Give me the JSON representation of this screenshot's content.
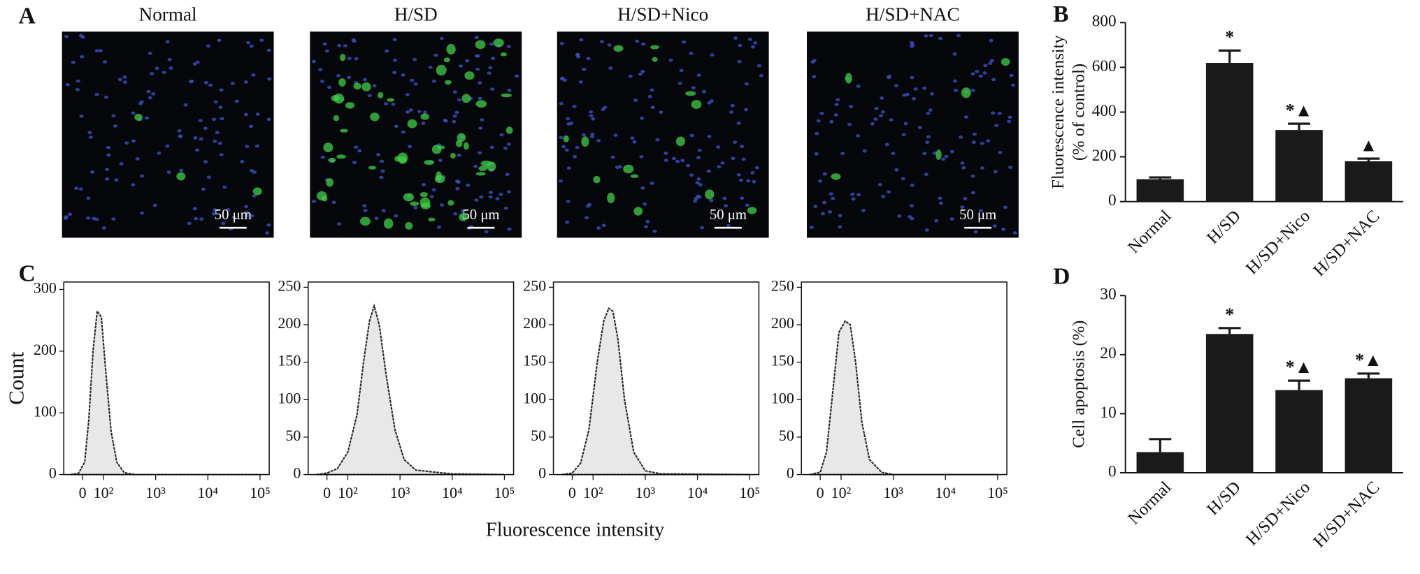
{
  "panel_labels": [
    "A",
    "B",
    "C",
    "D"
  ],
  "images": [
    {
      "title": "Normal",
      "scale_bar": "50 μm"
    },
    {
      "title": "H/SD",
      "scale_bar": "50 μm"
    },
    {
      "title": "H/SD+Nico",
      "scale_bar": "50 μm"
    },
    {
      "title": "H/SD+NAC",
      "scale_bar": "50 μm"
    }
  ],
  "shared_xlabel": "Fluorescence intensity",
  "chart_data": [
    {
      "type": "bar",
      "ylabel": [
        "Fluorescence intensity",
        "(% of control)"
      ],
      "categories": [
        "Normal",
        "H/SD",
        "H/SD+Nico",
        "H/SD+NAC"
      ],
      "values": [
        100,
        620,
        320,
        180
      ],
      "errors": [
        8,
        55,
        28,
        12
      ],
      "annotations": [
        null,
        "*",
        "*▲",
        "▲"
      ],
      "color": "#1a1a1a",
      "ylim": [
        0,
        800
      ],
      "yticks": [
        0,
        200,
        400,
        600,
        800
      ]
    },
    {
      "type": "bar",
      "ylabel": [
        "Cell apoptosis (%)"
      ],
      "categories": [
        "Normal",
        "H/SD",
        "H/SD+Nico",
        "H/SD+NAC"
      ],
      "values": [
        3.5,
        23.5,
        14,
        16
      ],
      "errors": [
        2.2,
        1,
        1.6,
        0.8
      ],
      "annotations": [
        null,
        "*",
        "*▲",
        "*▲"
      ],
      "color": "#1a1a1a",
      "ylim": [
        0,
        30
      ],
      "yticks": [
        0,
        10,
        20,
        30
      ]
    },
    {
      "type": "area",
      "ylabel": "Count",
      "xscale": "biexponential",
      "color": "#e8e8e8",
      "line_color": "#222222",
      "x": [
        -60,
        -20,
        10,
        30,
        50,
        70,
        90,
        110,
        140,
        180,
        250,
        400,
        1000,
        100000
      ],
      "values": [
        0,
        2,
        20,
        90,
        200,
        265,
        255,
        170,
        70,
        20,
        3,
        0,
        0,
        0
      ],
      "xlim": [
        -90,
        150000
      ],
      "ylim": [
        0,
        312
      ],
      "xticks": [
        0,
        {
          "value": 100,
          "label": "10²"
        },
        {
          "value": 1000,
          "label": "10³"
        },
        {
          "value": 10000,
          "label": "10⁴"
        },
        {
          "value": 100000,
          "label": "10⁵"
        }
      ],
      "yticks": [
        0,
        100,
        200,
        300
      ]
    },
    {
      "type": "area",
      "xscale": "biexponential",
      "color": "#e8e8e8",
      "line_color": "#222222",
      "x": [
        -50,
        0,
        50,
        100,
        150,
        200,
        260,
        320,
        400,
        550,
        800,
        1200,
        2000,
        5000,
        10000,
        100000
      ],
      "values": [
        0,
        2,
        8,
        30,
        80,
        150,
        205,
        225,
        200,
        130,
        60,
        20,
        6,
        3,
        1,
        0
      ],
      "xlim": [
        -90,
        150000
      ],
      "ylim": [
        0,
        257
      ],
      "xticks": [
        0,
        {
          "value": 100,
          "label": "10²"
        },
        {
          "value": 1000,
          "label": "10³"
        },
        {
          "value": 10000,
          "label": "10⁴"
        },
        {
          "value": 100000,
          "label": "10⁵"
        }
      ],
      "yticks": [
        0,
        50,
        100,
        150,
        200,
        250
      ]
    },
    {
      "type": "area",
      "xscale": "biexponential",
      "color": "#e8e8e8",
      "line_color": "#222222",
      "x": [
        -50,
        0,
        40,
        80,
        120,
        160,
        200,
        240,
        300,
        400,
        600,
        1000,
        2000,
        100000
      ],
      "values": [
        0,
        2,
        15,
        60,
        150,
        205,
        222,
        218,
        180,
        100,
        30,
        5,
        1,
        0
      ],
      "xlim": [
        -90,
        150000
      ],
      "ylim": [
        0,
        257
      ],
      "xticks": [
        0,
        {
          "value": 100,
          "label": "10²"
        },
        {
          "value": 1000,
          "label": "10³"
        },
        {
          "value": 10000,
          "label": "10⁴"
        },
        {
          "value": 100000,
          "label": "10⁵"
        }
      ],
      "yticks": [
        0,
        50,
        100,
        150,
        200,
        250
      ]
    },
    {
      "type": "area",
      "xscale": "biexponential",
      "color": "#e8e8e8",
      "line_color": "#222222",
      "x": [
        -50,
        0,
        30,
        60,
        90,
        120,
        150,
        190,
        250,
        350,
        600,
        1000,
        100000
      ],
      "values": [
        0,
        3,
        30,
        110,
        190,
        205,
        200,
        150,
        70,
        20,
        3,
        0,
        0
      ],
      "xlim": [
        -90,
        150000
      ],
      "ylim": [
        0,
        257
      ],
      "xticks": [
        0,
        {
          "value": 100,
          "label": "10²"
        },
        {
          "value": 1000,
          "label": "10³"
        },
        {
          "value": 10000,
          "label": "10⁴"
        },
        {
          "value": 100000,
          "label": "10⁵"
        }
      ],
      "yticks": [
        0,
        50,
        100,
        150,
        200,
        250
      ]
    }
  ]
}
